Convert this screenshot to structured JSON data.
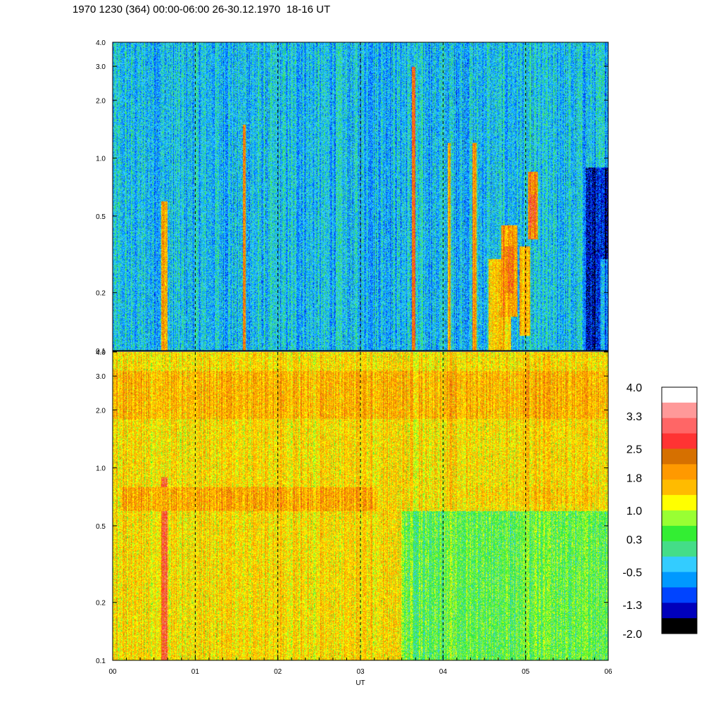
{
  "title": "1970 1230 (364) 00:00-06:00 26-30.12.1970  18-16 UT",
  "chart_data": {
    "type": "heatmap",
    "title": "1970 1230 (364) 00:00-06:00 26-30.12.1970  18-16 UT",
    "xlabel": "UT",
    "x_ticks": [
      "00",
      "01",
      "02",
      "03",
      "04",
      "05",
      "06"
    ],
    "xlim": [
      0,
      6
    ],
    "y_scale": "log",
    "ylim": [
      0.1,
      4.0
    ],
    "y_ticks": [
      "0.1",
      "0.2",
      "0.5",
      "1.0",
      "2.0",
      "3.0",
      "4.0"
    ],
    "hour_gridlines": "dashed",
    "panels": [
      {
        "name": "upper",
        "background_level": -0.4,
        "features": [
          {
            "x_start": 0.58,
            "x_end": 0.66,
            "y_range": [
              0.1,
              0.6
            ],
            "level": 1.8
          },
          {
            "x_start": 1.57,
            "x_end": 1.61,
            "y_range": [
              0.1,
              1.5
            ],
            "level": 2.0
          },
          {
            "x_start": 3.62,
            "x_end": 3.66,
            "y_range": [
              0.1,
              3.0
            ],
            "level": 2.3
          },
          {
            "x_start": 4.05,
            "x_end": 4.09,
            "y_range": [
              0.1,
              1.2
            ],
            "level": 1.8
          },
          {
            "x_start": 4.35,
            "x_end": 4.4,
            "y_range": [
              0.1,
              1.2
            ],
            "level": 2.0
          },
          {
            "x_start": 4.55,
            "x_end": 4.82,
            "y_range": [
              0.1,
              0.3
            ],
            "level": 1.5
          },
          {
            "x_start": 4.7,
            "x_end": 4.9,
            "y_range": [
              0.15,
              0.45
            ],
            "level": 1.9
          },
          {
            "x_start": 4.75,
            "x_end": 4.85,
            "y_range": [
              0.2,
              0.35
            ],
            "level": 2.3
          },
          {
            "x_start": 4.92,
            "x_end": 5.05,
            "y_range": [
              0.12,
              0.35
            ],
            "level": 1.6
          },
          {
            "x_start": 5.02,
            "x_end": 5.14,
            "y_range": [
              0.38,
              0.85
            ],
            "level": 2.0
          },
          {
            "x_start": 5.05,
            "x_end": 5.12,
            "y_range": [
              0.45,
              0.65
            ],
            "level": 2.4
          },
          {
            "x_start": 5.72,
            "x_end": 6.0,
            "y_range": [
              0.1,
              0.9
            ],
            "level": -1.4
          },
          {
            "x_start": 5.9,
            "x_end": 6.0,
            "y_range": [
              0.1,
              0.3
            ],
            "level": -0.6
          }
        ]
      },
      {
        "name": "lower",
        "background_level": 1.4,
        "features": [
          {
            "x_start": 0.58,
            "x_end": 0.66,
            "y_range": [
              0.1,
              0.9
            ],
            "level": 2.7
          },
          {
            "x_start": 0.1,
            "x_end": 3.2,
            "y_range": [
              0.6,
              0.8
            ],
            "level": 1.8
          },
          {
            "x_start": 0.0,
            "x_end": 6.0,
            "y_range": [
              1.8,
              3.2
            ],
            "level": 1.7
          },
          {
            "x_start": 3.5,
            "x_end": 6.0,
            "y_range": [
              0.1,
              0.6
            ],
            "level": 0.5
          },
          {
            "x_start": 4.4,
            "x_end": 5.9,
            "y_range": [
              0.65,
              0.8
            ],
            "level": 1.5
          }
        ]
      }
    ],
    "colorbar": {
      "labels": [
        "4.0",
        "3.3",
        "2.5",
        "1.8",
        "1.0",
        "0.3",
        "-0.5",
        "-1.3",
        "-2.0"
      ],
      "colors": [
        "#ffffff",
        "#ff9999",
        "#ff6666",
        "#ff3333",
        "#d67000",
        "#ff9900",
        "#ffbb00",
        "#ffff00",
        "#99ff33",
        "#33ee33",
        "#44dd88",
        "#33ccff",
        "#0099ff",
        "#0044ff",
        "#0000bb",
        "#000000"
      ],
      "range": [
        -2.0,
        4.0
      ]
    }
  }
}
